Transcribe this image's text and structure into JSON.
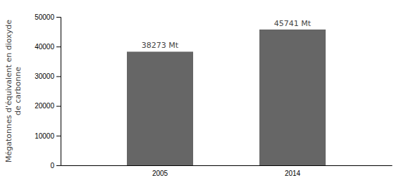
{
  "chart_data": {
    "type": "bar",
    "categories": [
      "2005",
      "2014"
    ],
    "values": [
      38273,
      45741
    ],
    "value_labels": [
      "38273 Mt",
      "45741 Mt"
    ],
    "data_labels": true,
    "color": "#666666",
    "ylabel": "Mégatonnes d'équivalent en dioxyde\nde carbonne",
    "ylim": [
      0,
      50000
    ],
    "yticks": [
      0,
      10000,
      20000,
      30000,
      40000,
      50000
    ],
    "grid": false
  }
}
